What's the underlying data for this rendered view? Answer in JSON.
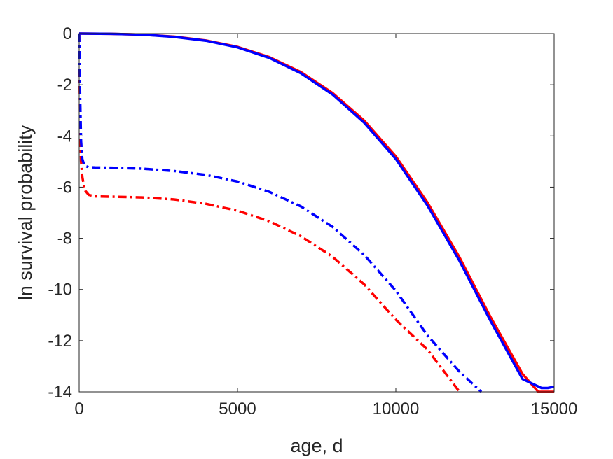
{
  "chart_data": {
    "type": "line",
    "title": "",
    "xlabel": "age, d",
    "ylabel": "ln survival probability",
    "xlim": [
      0,
      15000
    ],
    "ylim": [
      -14,
      0
    ],
    "xticks": [
      0,
      5000,
      10000,
      15000
    ],
    "yticks": [
      0,
      -2,
      -4,
      -6,
      -8,
      -10,
      -12,
      -14
    ],
    "grid": false,
    "legend": "none",
    "series": [
      {
        "style": "solid",
        "color": "#ff0000",
        "x": [
          0,
          1000,
          2000,
          3000,
          4000,
          5000,
          6000,
          7000,
          8000,
          9000,
          10000,
          11000,
          12000,
          13000,
          14000,
          14500,
          14750,
          15000
        ],
        "y": [
          0,
          -0.01,
          -0.04,
          -0.12,
          -0.27,
          -0.52,
          -0.92,
          -1.5,
          -2.32,
          -3.4,
          -4.8,
          -6.6,
          -8.72,
          -11.1,
          -13.3,
          -14.0,
          -14.0,
          -14.0
        ]
      },
      {
        "style": "solid",
        "color": "#0000ff",
        "x": [
          0,
          1000,
          2000,
          3000,
          4000,
          5000,
          6000,
          7000,
          8000,
          9000,
          10000,
          11000,
          12000,
          13000,
          14000,
          14600,
          14800,
          15000
        ],
        "y": [
          0,
          -0.01,
          -0.04,
          -0.13,
          -0.28,
          -0.54,
          -0.95,
          -1.55,
          -2.38,
          -3.48,
          -4.9,
          -6.72,
          -8.86,
          -11.25,
          -13.5,
          -13.85,
          -13.85,
          -13.8
        ]
      },
      {
        "style": "dashdot",
        "color": "#ff0000",
        "x": [
          0,
          30,
          60,
          100,
          150,
          200,
          300,
          500,
          1000,
          2000,
          3000,
          4000,
          5000,
          6000,
          7000,
          8000,
          9000,
          10000,
          11000,
          12000
        ],
        "y": [
          0,
          -3.5,
          -5.0,
          -5.6,
          -5.95,
          -6.15,
          -6.3,
          -6.36,
          -6.37,
          -6.4,
          -6.48,
          -6.65,
          -6.92,
          -7.33,
          -7.92,
          -8.72,
          -9.8,
          -11.18,
          -12.35,
          -13.98
        ]
      },
      {
        "style": "dashdot",
        "color": "#0000ff",
        "x": [
          0,
          30,
          60,
          100,
          150,
          200,
          300,
          500,
          1000,
          2000,
          3000,
          4000,
          5000,
          6000,
          7000,
          8000,
          9000,
          10000,
          11000,
          12000,
          12700
        ],
        "y": [
          0,
          -2.5,
          -4.2,
          -4.9,
          -5.1,
          -5.18,
          -5.22,
          -5.23,
          -5.24,
          -5.28,
          -5.37,
          -5.52,
          -5.78,
          -6.18,
          -6.75,
          -7.55,
          -8.65,
          -10.05,
          -11.8,
          -13.2,
          -14.0
        ]
      }
    ]
  }
}
